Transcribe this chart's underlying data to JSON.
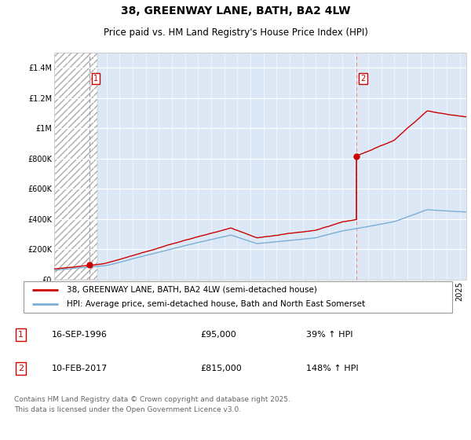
{
  "title": "38, GREENWAY LANE, BATH, BA2 4LW",
  "subtitle": "Price paid vs. HM Land Registry's House Price Index (HPI)",
  "ylim": [
    0,
    1500000
  ],
  "yticks": [
    0,
    200000,
    400000,
    600000,
    800000,
    1000000,
    1200000,
    1400000
  ],
  "ytick_labels": [
    "£0",
    "£200K",
    "£400K",
    "£600K",
    "£800K",
    "£1M",
    "£1.2M",
    "£1.4M"
  ],
  "hpi_color": "#7aaed6",
  "price_color": "#cc0000",
  "sale1_dashed_color": "#aaaaaa",
  "sale2_dashed_color": "#ff8888",
  "marker_color": "#cc0000",
  "sale1_date": "16-SEP-1996",
  "sale1_price": 95000,
  "sale1_hpi": "39% ↑ HPI",
  "sale1_year": 1996.71,
  "sale2_date": "10-FEB-2017",
  "sale2_price": 815000,
  "sale2_hpi": "148% ↑ HPI",
  "sale2_year": 2017.12,
  "legend_label1": "38, GREENWAY LANE, BATH, BA2 4LW (semi-detached house)",
  "legend_label2": "HPI: Average price, semi-detached house, Bath and North East Somerset",
  "footnote": "Contains HM Land Registry data © Crown copyright and database right 2025.\nThis data is licensed under the Open Government Licence v3.0.",
  "background_color": "#ffffff",
  "plot_bg_color": "#dce8f5",
  "grid_color": "#ffffff",
  "hatch_region_end": 1997.3,
  "xlim_start": 1994,
  "xlim_end": 2025.5,
  "title_fontsize": 10,
  "subtitle_fontsize": 8.5,
  "legend_fontsize": 7.5,
  "footnote_fontsize": 6.5,
  "tick_fontsize": 7,
  "table_fontsize": 8
}
